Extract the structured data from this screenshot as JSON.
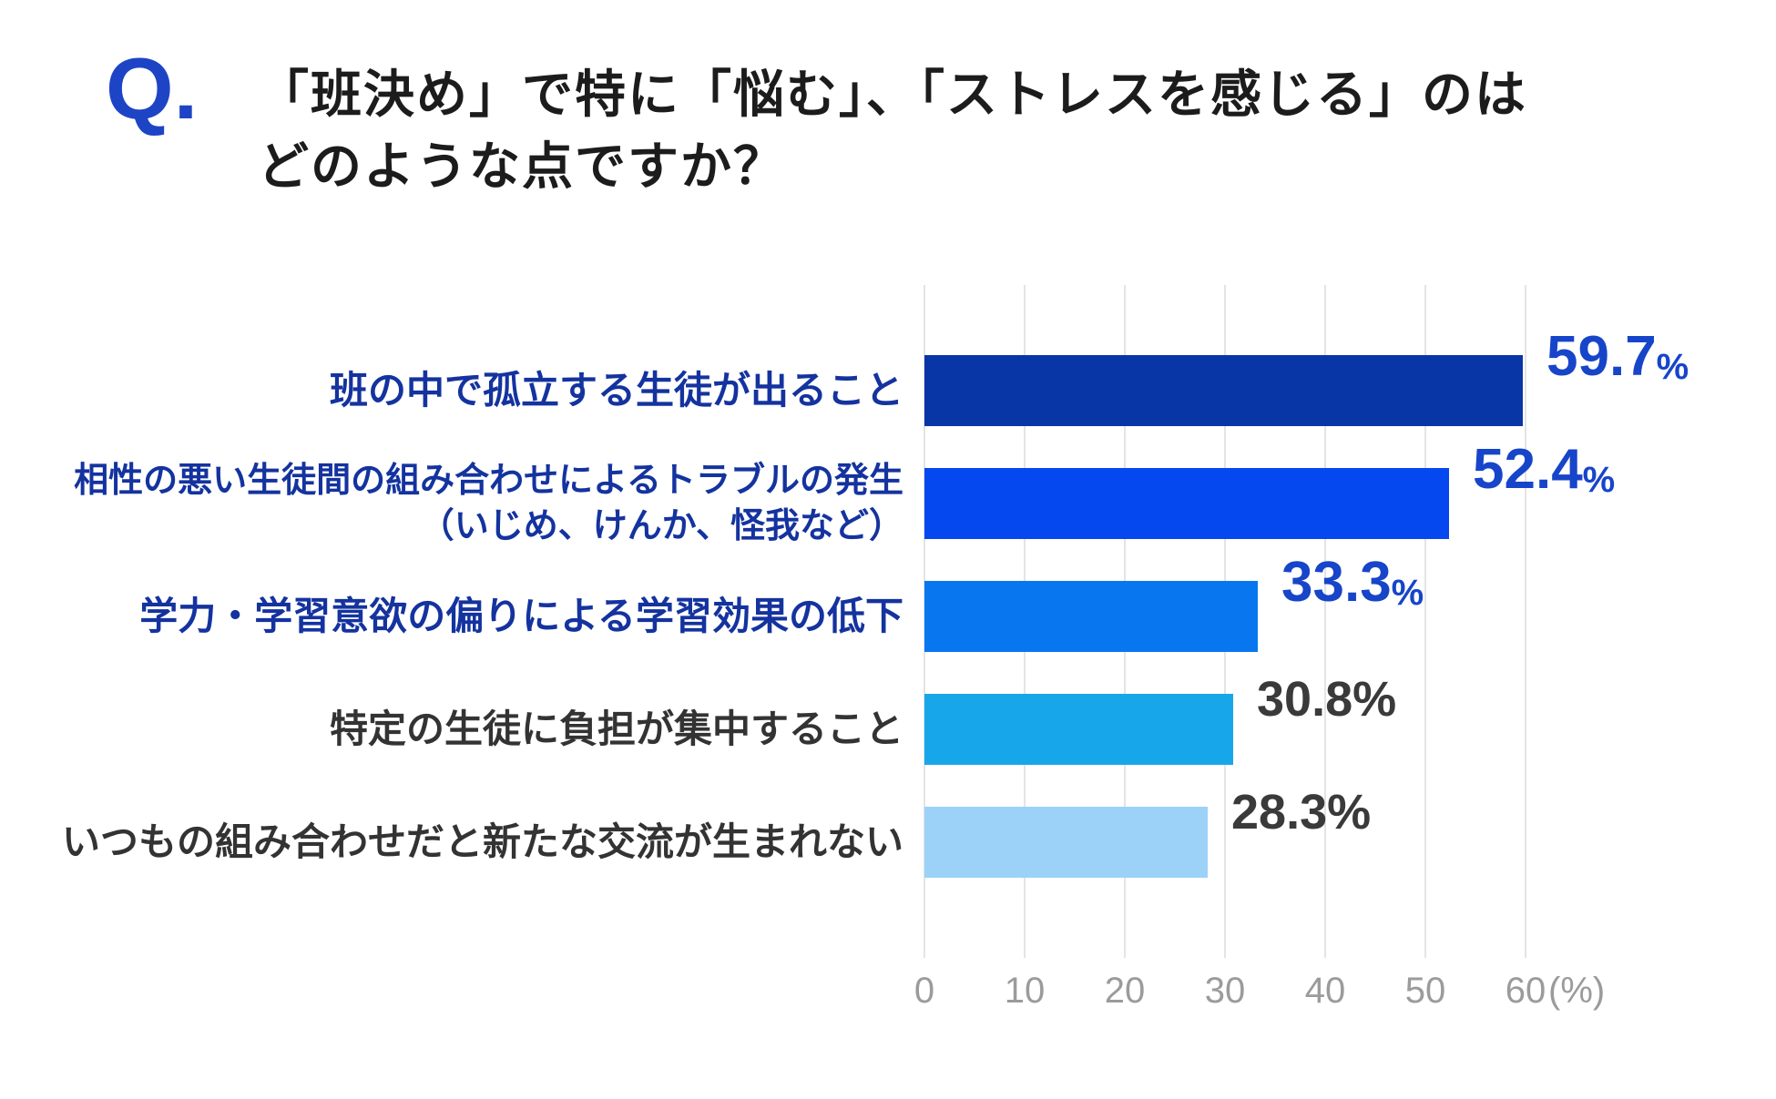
{
  "header": {
    "q_mark": "Q.",
    "title_line1": "「班決め」で特に「悩む」、「ストレスを感じる」のは",
    "title_line2": "どのような点ですか？"
  },
  "chart_data": {
    "type": "bar",
    "orientation": "horizontal",
    "title": "「班決め」で特に「悩む」、「ストレスを感じる」のはどのような点ですか？",
    "xlabel": "",
    "ylabel": "",
    "xlim": [
      0,
      60
    ],
    "grid": true,
    "unit": "%",
    "axis": {
      "ticks": [
        "0",
        "10",
        "20",
        "30",
        "40",
        "50",
        "60"
      ],
      "suffix": "(%)",
      "tick_color": "#9b9b9d",
      "grid_color": "#e4e4e6"
    },
    "categories": [
      "班の中で孤立する生徒が出ること",
      "相性の悪い生徒間の組み合わせによるトラブルの発生（いじめ、けんか、怪我など）",
      "学力・学習意欲の偏りによる学習効果の低下",
      "特定の生徒に負担が集中すること",
      "いつもの組み合わせだと新たな交流が生まれない"
    ],
    "values": [
      59.7,
      52.4,
      33.3,
      30.8,
      28.3
    ],
    "rows": [
      {
        "label_lines": [
          "班の中で孤立する生徒が出ること"
        ],
        "value": 59.7,
        "value_display": "59.7",
        "unit": "%",
        "bar_color": "#0936a6",
        "label_color": "#14339f",
        "value_color": "#1745c9",
        "emphasis": true
      },
      {
        "label_lines": [
          "相性の悪い生徒間の組み合わせによるトラブルの発生",
          "（いじめ、けんか、怪我など）"
        ],
        "value": 52.4,
        "value_display": "52.4",
        "unit": "%",
        "bar_color": "#0548f0",
        "label_color": "#14339f",
        "value_color": "#1745c9",
        "emphasis": true
      },
      {
        "label_lines": [
          "学力・学習意欲の偏りによる学習効果の低下"
        ],
        "value": 33.3,
        "value_display": "33.3",
        "unit": "%",
        "bar_color": "#0877ef",
        "label_color": "#14339f",
        "value_color": "#1745c9",
        "emphasis": true
      },
      {
        "label_lines": [
          "特定の生徒に負担が集中すること"
        ],
        "value": 30.8,
        "value_display": "30.8",
        "unit": "%",
        "bar_color": "#18a6ea",
        "label_color": "#333333",
        "value_color": "#3a3a3a",
        "emphasis": false
      },
      {
        "label_lines": [
          "いつもの組み合わせだと新たな交流が生まれない"
        ],
        "value": 28.3,
        "value_display": "28.3",
        "unit": "%",
        "bar_color": "#9dd2f8",
        "label_color": "#333333",
        "value_color": "#3a3a3a",
        "emphasis": false
      }
    ]
  }
}
